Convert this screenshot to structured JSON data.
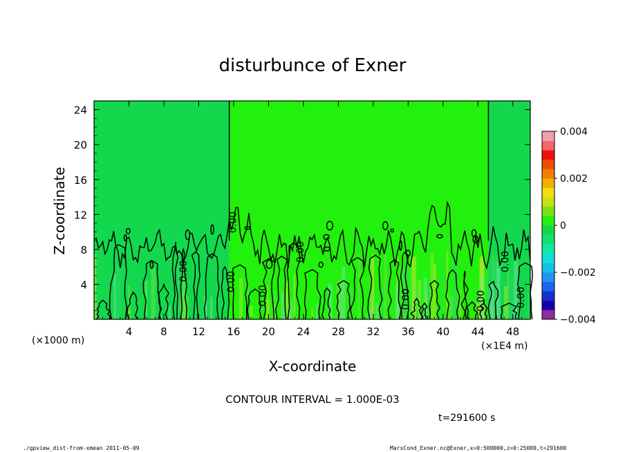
{
  "chart_data": {
    "type": "heatmap",
    "title": "disturbunce of Exner",
    "xlabel": "X-coordinate",
    "ylabel": "Z-coordinate",
    "x_unit_left": "(×1000 m)",
    "x_unit_right": "(×1E4 m)",
    "xlim": [
      0,
      50
    ],
    "ylim": [
      0,
      25
    ],
    "x_ticks": [
      "4",
      "8",
      "12",
      "16",
      "20",
      "24",
      "28",
      "32",
      "36",
      "40",
      "44",
      "48"
    ],
    "y_ticks": [
      "4",
      "8",
      "12",
      "16",
      "20",
      "24"
    ],
    "background_zones": [
      {
        "x0": 0,
        "x1": 15.5,
        "color": "#13d84d"
      },
      {
        "x0": 15.5,
        "x1": 45.2,
        "color": "#22f00d"
      },
      {
        "x0": 45.2,
        "x1": 50,
        "color": "#13d84d"
      }
    ],
    "zero_contour_x": [
      15.5,
      45.2
    ],
    "contour_labels": [
      {
        "text": "0.00",
        "x": 10.6,
        "y": 5.5
      },
      {
        "text": "0.00",
        "x": 16.3,
        "y": 11.1
      },
      {
        "text": "0.00",
        "x": 16.1,
        "y": 4.3
      },
      {
        "text": "0.00",
        "x": 19.7,
        "y": 2.7
      },
      {
        "text": "0.00",
        "x": 24.0,
        "y": 7.7
      },
      {
        "text": "0.00",
        "x": 36.1,
        "y": 2.3
      },
      {
        "text": "0.00",
        "x": 44.7,
        "y": 2.1
      },
      {
        "text": "0.00",
        "x": 47.5,
        "y": 6.6
      },
      {
        "text": "0.00",
        "x": 49.3,
        "y": 2.5
      }
    ],
    "colorbar": {
      "min": -0.004,
      "max": 0.004,
      "tick_labels": [
        "0.004",
        "0.002",
        "0",
        "−0.002",
        "−0.004"
      ],
      "tick_values": [
        0.004,
        0.002,
        0,
        -0.002,
        -0.004
      ],
      "colors": [
        "#8a2fa0",
        "#1a00a8",
        "#1630d0",
        "#1e62f0",
        "#1e96f0",
        "#12c0e8",
        "#0ee0d8",
        "#10e8a8",
        "#12e070",
        "#13d84d",
        "#22f00d",
        "#7ee010",
        "#c8e010",
        "#f0e010",
        "#f0b000",
        "#f08000",
        "#f04a00",
        "#f01010",
        "#f06868",
        "#f0a0a8"
      ]
    },
    "contour_interval_text": "CONTOUR INTERVAL = 1.000E-03",
    "time_text": "t=291600 s"
  },
  "footer": {
    "left": "./gpview_dist-from-xmean   2011-05-09",
    "right": "MarsCond_Exner.nc@Exner,x=0:500000,z=0:25000,t=291600"
  }
}
